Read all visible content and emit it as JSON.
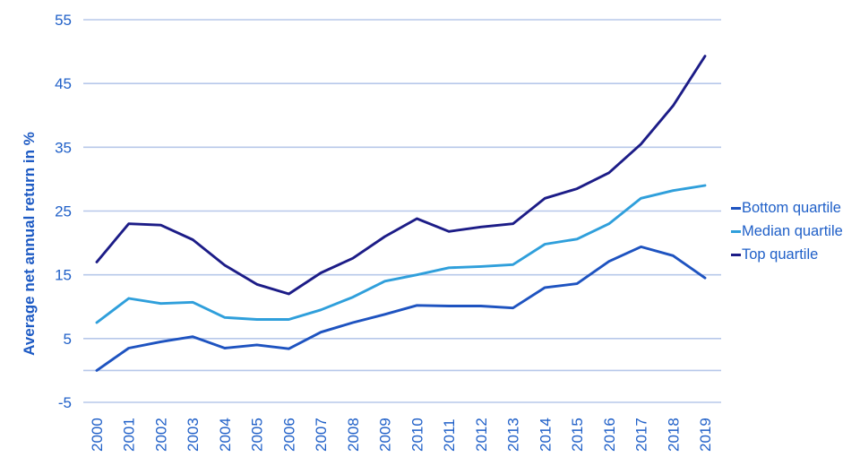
{
  "chart_data": {
    "type": "line",
    "title": "",
    "xlabel": "",
    "ylabel": "Average net annual return in %",
    "x": [
      "2000",
      "2001",
      "2002",
      "2003",
      "2004",
      "2005",
      "2006",
      "2007",
      "2008",
      "2009",
      "2010",
      "2011",
      "2012",
      "2013",
      "2014",
      "2015",
      "2016",
      "2017",
      "2018",
      "2019"
    ],
    "series": [
      {
        "name": "Bottom quartile",
        "color": "#1e53c0",
        "values": [
          0,
          3.5,
          4.5,
          5.3,
          3.5,
          4.0,
          3.4,
          6.0,
          7.5,
          8.8,
          10.2,
          10.1,
          10.1,
          9.8,
          13.0,
          13.6,
          17.1,
          19.4,
          18.0,
          14.5
        ]
      },
      {
        "name": "Median quartile",
        "color": "#2f9fdb",
        "values": [
          7.5,
          11.3,
          10.5,
          10.7,
          8.3,
          8.0,
          8.0,
          9.5,
          11.5,
          14.0,
          15.0,
          16.1,
          16.3,
          16.6,
          19.8,
          20.6,
          23.0,
          27.0,
          28.2,
          29.0
        ]
      },
      {
        "name": "Top quartile",
        "color": "#1c1c87",
        "values": [
          17.0,
          23.0,
          22.8,
          20.5,
          16.5,
          13.5,
          12.0,
          15.3,
          17.6,
          21.0,
          23.8,
          21.8,
          22.5,
          23.0,
          27.0,
          28.5,
          31.0,
          35.5,
          41.5,
          49.3
        ]
      }
    ],
    "ylim": [
      -5,
      55
    ],
    "ytick_labels": [
      55,
      45,
      35,
      25,
      15,
      5,
      -5
    ],
    "gridline_values": [
      55,
      45,
      35,
      25,
      15,
      5,
      0,
      -5
    ],
    "grid_on": true,
    "legend_position": "right",
    "colors": {
      "grid": "#b7c8ea",
      "tick_text": "#2060c8",
      "axis_title_text": "#1e5bc4",
      "legend_text": "#2060c8"
    }
  }
}
